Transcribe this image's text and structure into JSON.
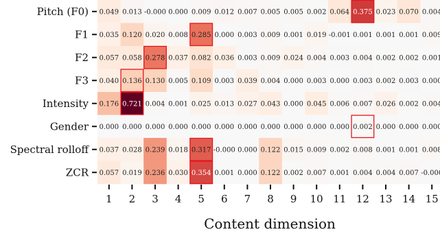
{
  "chart_data": {
    "type": "heatmap",
    "title": "",
    "xlabel": "Content dimension",
    "ylabel": "",
    "columns": [
      "1",
      "2",
      "3",
      "4",
      "5",
      "6",
      "7",
      "8",
      "9",
      "10",
      "11",
      "12",
      "13",
      "14",
      "15"
    ],
    "rows": [
      "Pitch (F0)",
      "F1",
      "F2",
      "F3",
      "Intensity",
      "Gender",
      "Spectral rolloff",
      "ZCR"
    ],
    "values": [
      [
        0.049,
        0.013,
        -0.0,
        0.0,
        0.009,
        0.012,
        0.007,
        0.005,
        0.005,
        0.002,
        0.064,
        0.375,
        0.023,
        0.07,
        0.004
      ],
      [
        0.035,
        0.12,
        0.02,
        0.008,
        0.285,
        0.0,
        0.003,
        0.009,
        0.001,
        0.019,
        -0.001,
        0.001,
        0.001,
        0.001,
        0.009
      ],
      [
        0.057,
        0.058,
        0.278,
        0.037,
        0.082,
        0.036,
        0.003,
        0.009,
        0.024,
        0.004,
        0.003,
        0.004,
        0.002,
        0.002,
        0.001
      ],
      [
        0.04,
        0.136,
        0.13,
        0.005,
        0.109,
        0.003,
        0.039,
        0.004,
        0.0,
        0.003,
        0.0,
        0.003,
        0.002,
        0.003,
        0.0
      ],
      [
        0.176,
        0.721,
        0.004,
        0.001,
        0.025,
        0.013,
        0.027,
        0.043,
        0.0,
        0.045,
        0.006,
        0.007,
        0.026,
        0.002,
        0.004
      ],
      [
        0.0,
        0.0,
        0.0,
        0.0,
        0.0,
        0.0,
        0.0,
        0.0,
        0.0,
        0.0,
        0.0,
        0.002,
        0.0,
        0.0,
        0.0
      ],
      [
        0.037,
        0.028,
        0.239,
        0.018,
        0.317,
        -0.0,
        0.0,
        0.122,
        0.015,
        0.009,
        0.002,
        0.008,
        0.001,
        0.001,
        0.008
      ],
      [
        0.057,
        0.019,
        0.236,
        0.03,
        0.354,
        0.001,
        0.0,
        0.122,
        0.002,
        0.007,
        0.001,
        0.004,
        0.004,
        0.007,
        -0.0
      ]
    ],
    "labels": [
      [
        "0.049",
        "0.013",
        "-0.000",
        "0.000",
        "0.009",
        "0.012",
        "0.007",
        "0.005",
        "0.005",
        "0.002",
        "0.064",
        "0.375",
        "0.023",
        "0.070",
        "0.004"
      ],
      [
        "0.035",
        "0.120",
        "0.020",
        "0.008",
        "0.285",
        "0.000",
        "0.003",
        "0.009",
        "0.001",
        "0.019",
        "-0.001",
        "0.001",
        "0.001",
        "0.001",
        "0.009"
      ],
      [
        "0.057",
        "0.058",
        "0.278",
        "0.037",
        "0.082",
        "0.036",
        "0.003",
        "0.009",
        "0.024",
        "0.004",
        "0.003",
        "0.004",
        "0.002",
        "0.002",
        "0.001"
      ],
      [
        "0.040",
        "0.136",
        "0.130",
        "0.005",
        "0.109",
        "0.003",
        "0.039",
        "0.004",
        "0.000",
        "0.003",
        "0.000",
        "0.003",
        "0.002",
        "0.003",
        "0.000"
      ],
      [
        "0.176",
        "0.721",
        "0.004",
        "0.001",
        "0.025",
        "0.013",
        "0.027",
        "0.043",
        "0.000",
        "0.045",
        "0.006",
        "0.007",
        "0.026",
        "0.002",
        "0.004"
      ],
      [
        "0.000",
        "0.000",
        "0.000",
        "0.000",
        "0.000",
        "0.000",
        "0.000",
        "0.000",
        "0.000",
        "0.000",
        "0.000",
        "0.002",
        "0.000",
        "0.000",
        "0.000"
      ],
      [
        "0.037",
        "0.028",
        "0.239",
        "0.018",
        "0.317",
        "-0.000",
        "0.000",
        "0.122",
        "0.015",
        "0.009",
        "0.002",
        "0.008",
        "0.001",
        "0.001",
        "0.008"
      ],
      [
        "0.057",
        "0.019",
        "0.236",
        "0.030",
        "0.354",
        "0.001",
        "0.000",
        "0.122",
        "0.002",
        "0.007",
        "0.001",
        "0.004",
        "0.004",
        "0.007",
        "-0.000"
      ]
    ],
    "highlighted": [
      {
        "row": "Pitch (F0)",
        "column": "12"
      },
      {
        "row": "F1",
        "column": "5"
      },
      {
        "row": "F2",
        "column": "3"
      },
      {
        "row": "F3",
        "column": "2"
      },
      {
        "row": "Intensity",
        "column": "2"
      },
      {
        "row": "Gender",
        "column": "12"
      },
      {
        "row": "Spectral rolloff",
        "column": "5"
      },
      {
        "row": "ZCR",
        "column": "5"
      }
    ],
    "colormap": "Reds",
    "highlight_color": "#e8141c",
    "grid": false,
    "legend": "none"
  }
}
